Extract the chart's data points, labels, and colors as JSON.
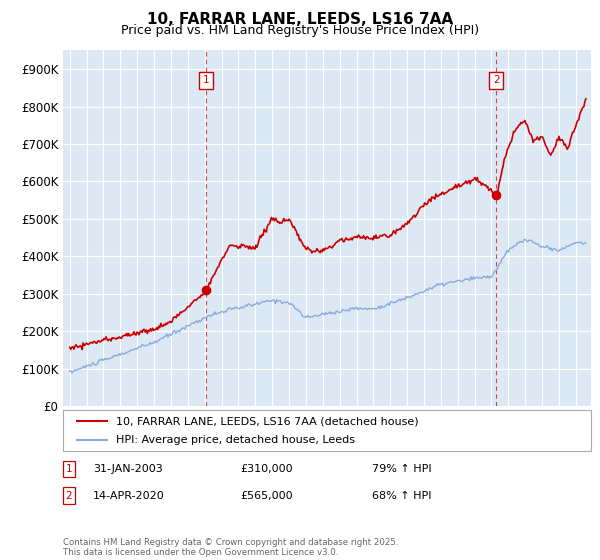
{
  "title_line1": "10, FARRAR LANE, LEEDS, LS16 7AA",
  "title_line2": "Price paid vs. HM Land Registry's House Price Index (HPI)",
  "background_color": "#dce9f5",
  "legend_label_red": "10, FARRAR LANE, LEEDS, LS16 7AA (detached house)",
  "legend_label_blue": "HPI: Average price, detached house, Leeds",
  "annotation1_label": "1",
  "annotation1_date": "31-JAN-2003",
  "annotation1_price": "£310,000",
  "annotation1_hpi": "79% ↑ HPI",
  "annotation2_label": "2",
  "annotation2_date": "14-APR-2020",
  "annotation2_price": "£565,000",
  "annotation2_hpi": "68% ↑ HPI",
  "footer": "Contains HM Land Registry data © Crown copyright and database right 2025.\nThis data is licensed under the Open Government Licence v3.0.",
  "red_color": "#cc0000",
  "blue_color": "#88aadd",
  "ylim_min": 0,
  "ylim_max": 950000,
  "yticks": [
    0,
    100000,
    200000,
    300000,
    400000,
    500000,
    600000,
    700000,
    800000,
    900000
  ],
  "ytick_labels": [
    "£0",
    "£100K",
    "£200K",
    "£300K",
    "£400K",
    "£500K",
    "£600K",
    "£700K",
    "£800K",
    "£900K"
  ],
  "marker1_x": 2003.083,
  "marker1_y": 310000,
  "marker2_x": 2020.29,
  "marker2_y": 565000,
  "vline1_x": 2003.083,
  "vline2_x": 2020.29,
  "xlim_min": 1994.6,
  "xlim_max": 2025.9
}
